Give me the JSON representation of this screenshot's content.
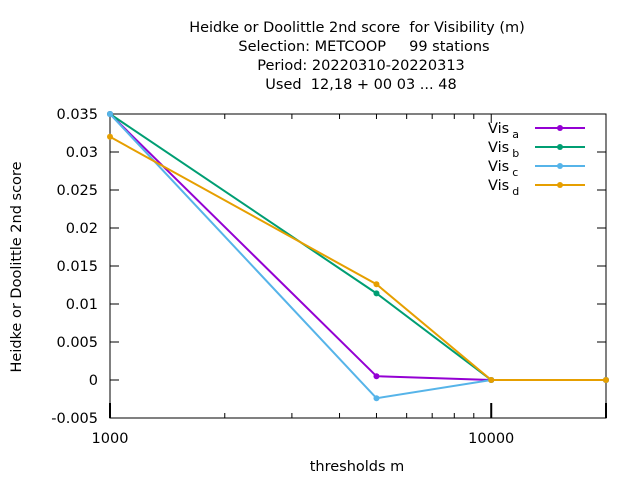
{
  "chart_data": {
    "type": "line",
    "title_lines": [
      "Heidke or Doolittle 2nd score  for Visibility (m)",
      "Selection: METCOOP     99 stations",
      "Period: 20220310-20220313",
      "Used  12,18 + 00 03 ... 48"
    ],
    "xlabel": "thresholds m",
    "ylabel": "Heidke or Doolittle 2nd score",
    "x_scale": "log",
    "xlim": [
      1000,
      20000
    ],
    "ylim": [
      -0.005,
      0.035
    ],
    "x_tick_labels": [
      "1000",
      "10000"
    ],
    "y_tick_labels": [
      "-0.005",
      "0",
      "0.005",
      "0.01",
      "0.015",
      "0.02",
      "0.025",
      "0.03",
      "0.035"
    ],
    "legend_position": "top-right",
    "series": [
      {
        "name": "Vis",
        "subscript": "a",
        "color": "#9400d3",
        "x": [
          1000,
          5000,
          10000,
          20000
        ],
        "y": [
          0.035,
          0.0005,
          0.0,
          0.0
        ]
      },
      {
        "name": "Vis",
        "subscript": "b",
        "color": "#009e73",
        "x": [
          1000,
          5000,
          10000,
          20000
        ],
        "y": [
          0.035,
          0.0114,
          0.0,
          0.0
        ]
      },
      {
        "name": "Vis",
        "subscript": "c",
        "color": "#56b4e9",
        "x": [
          1000,
          5000,
          10000,
          20000
        ],
        "y": [
          0.035,
          -0.0024,
          0.0,
          0.0
        ]
      },
      {
        "name": "Vis",
        "subscript": "d",
        "color": "#e69f00",
        "x": [
          1000,
          5000,
          10000,
          20000
        ],
        "y": [
          0.032,
          0.0126,
          0.0,
          0.0
        ]
      }
    ]
  }
}
